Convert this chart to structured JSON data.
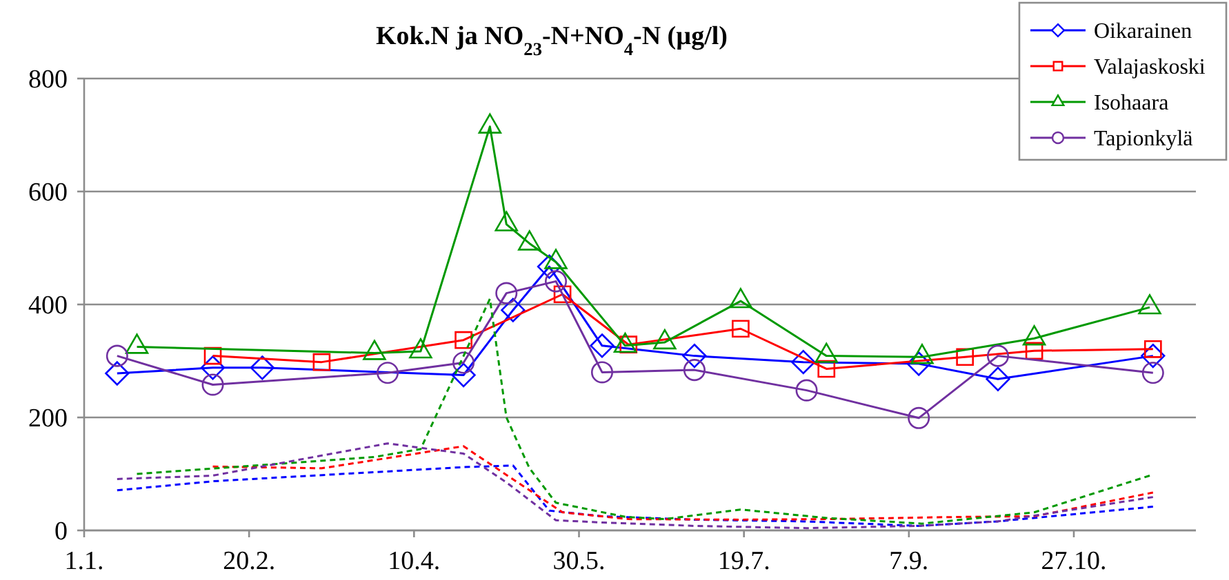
{
  "chart_data": {
    "type": "line",
    "title": "Kok.N ja NO$_{23}$-N+NO$_{4}$-N  (µg/l)",
    "xlim": [
      "--01-01",
      "--12-03"
    ],
    "xticks": [
      {
        "value": "--01-01",
        "label": "1.1."
      },
      {
        "value": "--02-20",
        "label": "20.2."
      },
      {
        "value": "--04-10",
        "label": "10.4."
      },
      {
        "value": "--05-30",
        "label": "30.5."
      },
      {
        "value": "--07-19",
        "label": "19.7."
      },
      {
        "value": "--09-07",
        "label": "7.9."
      },
      {
        "value": "--10-27",
        "label": "27.10."
      }
    ],
    "ylim": [
      0,
      800
    ],
    "yticks": [
      0,
      200,
      400,
      600,
      800
    ],
    "grid": "y",
    "legend": "top right",
    "series": [
      {
        "name": "Oikarainen",
        "color": "#0000ff",
        "marker": "diamond",
        "line_style": "solid",
        "x": [
          "--01-11",
          "--02-09",
          "--02-24",
          "--04-25",
          "--05-10",
          "--05-21",
          "--06-06",
          "--07-04",
          "--08-06",
          "--09-10",
          "--10-04",
          "--11-20"
        ],
        "values": [
          278,
          288,
          288,
          275,
          390,
          467,
          327,
          309,
          298,
          295,
          268,
          309
        ]
      },
      {
        "name": "Valajaskoski",
        "color": "#ff0000",
        "marker": "square",
        "line_style": "solid",
        "x": [
          "--02-09",
          "--03-13",
          "--04-25",
          "--05-25",
          "--06-14",
          "--07-18",
          "--08-13",
          "--09-24",
          "--10-15",
          "--11-20"
        ],
        "values": [
          309,
          298,
          337,
          418,
          329,
          357,
          286,
          307,
          318,
          321
        ]
      },
      {
        "name": "Isohaara",
        "color": "#009900",
        "marker": "triangle",
        "line_style": "solid",
        "x": [
          "--01-17",
          "--03-29",
          "--04-12",
          "--05-03",
          "--05-08",
          "--05-15",
          "--05-23",
          "--06-13",
          "--06-25",
          "--07-18",
          "--08-13",
          "--09-11",
          "--10-15",
          "--11-19"
        ],
        "values": [
          325,
          314,
          317,
          715,
          542,
          508,
          475,
          327,
          333,
          406,
          309,
          307,
          340,
          395
        ]
      },
      {
        "name": "Tapionkylä",
        "color": "#7030a0",
        "marker": "circle",
        "line_style": "solid",
        "x": [
          "--01-11",
          "--02-09",
          "--04-02",
          "--04-25",
          "--05-08",
          "--05-23",
          "--06-06",
          "--07-04",
          "--08-07",
          "--09-10",
          "--10-04",
          "--11-20"
        ],
        "values": [
          309,
          258,
          279,
          297,
          420,
          441,
          280,
          284,
          248,
          199,
          309,
          279
        ]
      },
      {
        "color": "#0000ff",
        "marker": "none",
        "line_style": "dashed",
        "x": [
          "--01-11",
          "--02-09",
          "--02-24",
          "--04-25",
          "--05-10",
          "--05-21",
          "--06-06",
          "--07-04",
          "--08-06",
          "--09-10",
          "--10-04",
          "--11-20"
        ],
        "values": [
          71,
          87,
          92,
          112,
          115,
          35,
          25,
          19,
          16,
          8,
          16,
          42
        ]
      },
      {
        "color": "#ff0000",
        "marker": "none",
        "line_style": "dashed",
        "x": [
          "--02-09",
          "--03-13",
          "--04-25",
          "--05-25",
          "--06-14",
          "--07-18",
          "--08-13",
          "--09-24",
          "--10-15",
          "--11-20"
        ],
        "values": [
          113,
          110,
          149,
          32,
          20,
          19,
          20,
          24,
          25,
          67
        ]
      },
      {
        "color": "#009900",
        "marker": "none",
        "line_style": "dashed",
        "x": [
          "--01-17",
          "--03-29",
          "--04-12",
          "--05-03",
          "--05-08",
          "--05-15",
          "--05-23",
          "--06-13",
          "--06-25",
          "--07-18",
          "--08-13",
          "--09-11",
          "--10-15",
          "--11-19"
        ],
        "values": [
          100,
          130,
          144,
          410,
          200,
          110,
          49,
          24,
          20,
          37,
          22,
          12,
          32,
          97
        ]
      },
      {
        "color": "#7030a0",
        "marker": "none",
        "line_style": "dashed",
        "x": [
          "--01-11",
          "--02-09",
          "--04-02",
          "--04-25",
          "--05-08",
          "--05-23",
          "--06-06",
          "--07-04",
          "--08-07",
          "--09-10",
          "--10-04",
          "--11-20"
        ],
        "values": [
          91,
          97,
          154,
          136,
          85,
          18,
          14,
          8,
          4,
          8,
          16,
          59
        ]
      }
    ]
  }
}
